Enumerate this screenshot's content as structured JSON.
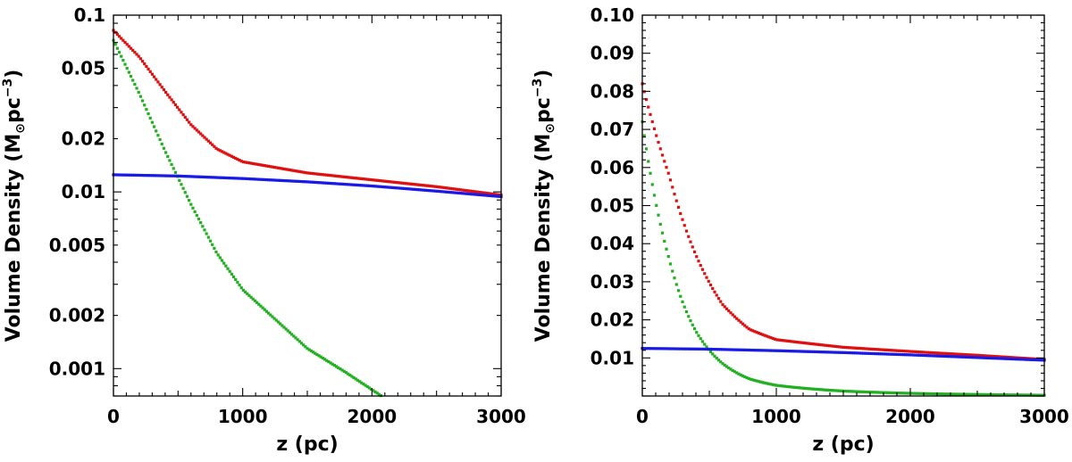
{
  "chart_data": [
    {
      "type": "scatter",
      "panel": "left",
      "yscale": "log",
      "xlim": [
        0,
        3000
      ],
      "ylim": [
        0.0007,
        0.1
      ],
      "xticks": [
        0,
        1000,
        2000,
        3000
      ],
      "xtick_labels": [
        "0",
        "1000",
        "2000",
        "3000"
      ],
      "yticks": [
        0.1,
        0.05,
        0.02,
        0.01,
        0.005,
        0.002,
        0.001
      ],
      "ytick_labels": [
        "0.1",
        "0.05",
        "0.02",
        "0.01",
        "0.005",
        "0.002",
        "0.001"
      ],
      "xlabel": "z (pc)",
      "ylabel": {
        "main": "Volume Density (M",
        "sub": "⊙",
        "mid": "pc",
        "sup": "−3",
        "end": ")"
      },
      "grid": false,
      "series": [
        {
          "color": "#e01010",
          "x": [
            0,
            200,
            400,
            600,
            800,
            1000,
            1500,
            2000,
            2500,
            3000
          ],
          "y": [
            0.082,
            0.058,
            0.037,
            0.024,
            0.0175,
            0.0148,
            0.0128,
            0.0117,
            0.0107,
            0.0096
          ]
        },
        {
          "color": "#20b020",
          "x": [
            0,
            200,
            400,
            600,
            800,
            1000,
            1500,
            1800,
            2100
          ],
          "y": [
            0.072,
            0.036,
            0.017,
            0.0085,
            0.0045,
            0.0028,
            0.0013,
            0.00095,
            0.00068
          ]
        },
        {
          "color": "#1a1ae6",
          "x": [
            0,
            500,
            1000,
            1500,
            2000,
            2500,
            3000
          ],
          "y": [
            0.0125,
            0.0123,
            0.0119,
            0.0114,
            0.0108,
            0.0101,
            0.0094
          ]
        }
      ]
    },
    {
      "type": "scatter",
      "panel": "right",
      "yscale": "linear",
      "xlim": [
        0,
        3000
      ],
      "ylim": [
        0,
        0.1
      ],
      "xticks": [
        0,
        1000,
        2000,
        3000
      ],
      "xtick_labels": [
        "0",
        "1000",
        "2000",
        "3000"
      ],
      "yticks": [
        0.1,
        0.09,
        0.08,
        0.07,
        0.06,
        0.05,
        0.04,
        0.03,
        0.02,
        0.01
      ],
      "ytick_labels": [
        "0.10",
        "0.09",
        "0.08",
        "0.07",
        "0.06",
        "0.05",
        "0.04",
        "0.03",
        "0.02",
        "0.01"
      ],
      "xlabel": "z (pc)",
      "ylabel": {
        "main": "Volume Density (M",
        "sub": "⊙",
        "mid": "pc",
        "sup": "−3",
        "end": ")"
      },
      "grid": false,
      "series": [
        {
          "color": "#e01010",
          "x": [
            0,
            200,
            400,
            600,
            800,
            1000,
            1500,
            2000,
            2500,
            3000
          ],
          "y": [
            0.082,
            0.058,
            0.037,
            0.024,
            0.0175,
            0.0148,
            0.0128,
            0.0117,
            0.0107,
            0.0096
          ]
        },
        {
          "color": "#20b020",
          "x": [
            0,
            200,
            400,
            600,
            800,
            1000,
            1500,
            2000,
            2500,
            3000
          ],
          "y": [
            0.072,
            0.036,
            0.017,
            0.0085,
            0.0045,
            0.0028,
            0.0013,
            0.0007,
            0.0004,
            0.0002
          ]
        },
        {
          "color": "#1a1ae6",
          "x": [
            0,
            500,
            1000,
            1500,
            2000,
            2500,
            3000
          ],
          "y": [
            0.0125,
            0.0123,
            0.0119,
            0.0114,
            0.0108,
            0.0101,
            0.0094
          ]
        }
      ]
    }
  ]
}
